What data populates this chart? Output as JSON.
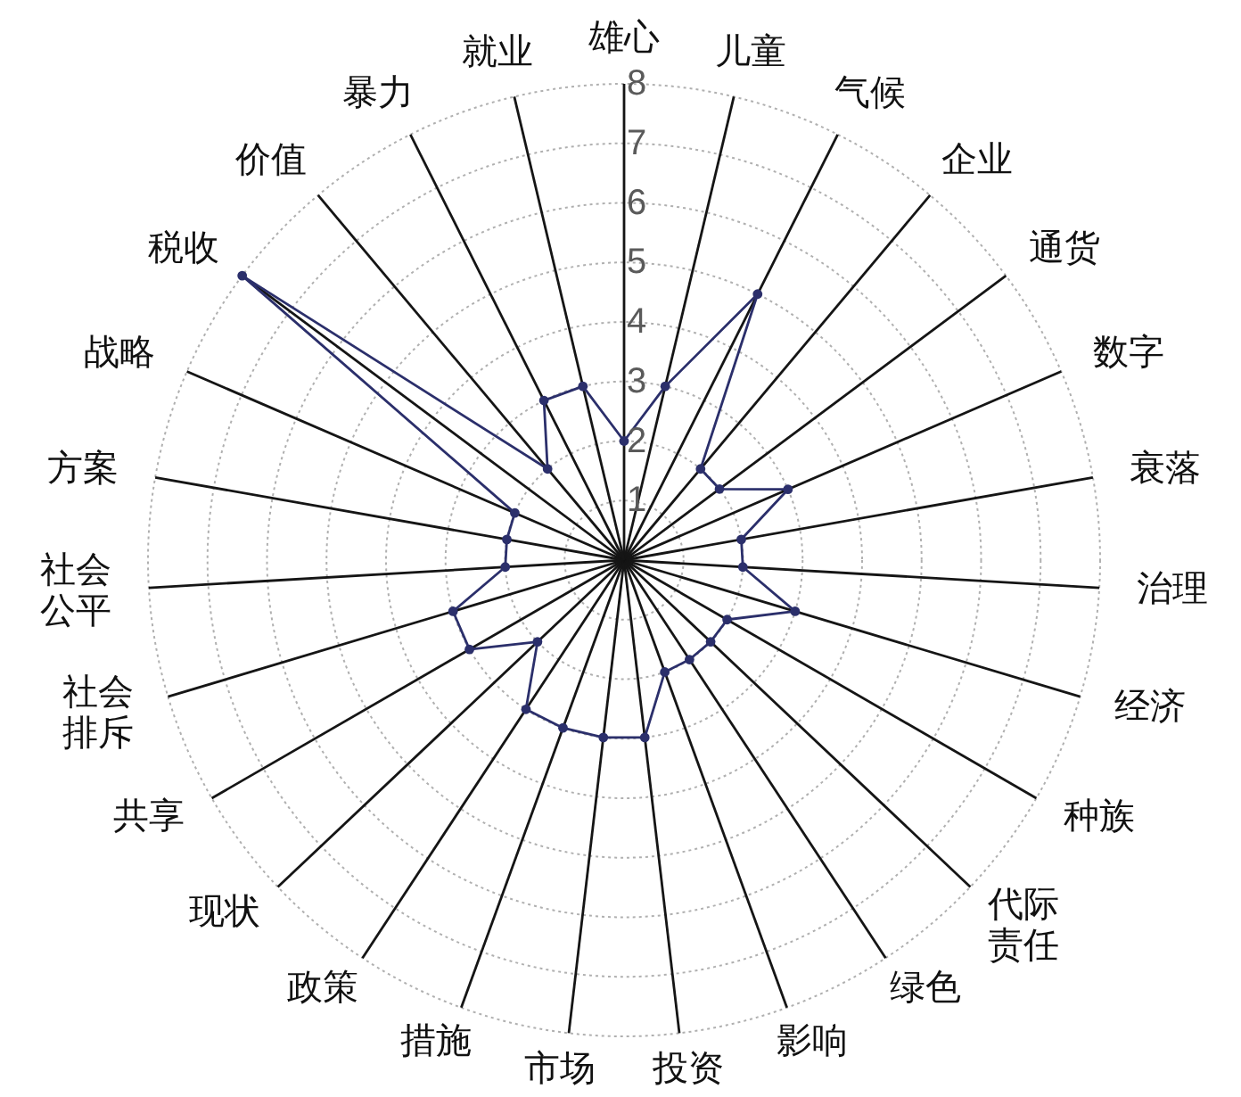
{
  "chart_data": {
    "type": "radar",
    "categories": [
      "雄心",
      "儿童",
      "气候",
      "企业",
      "通货",
      "数字",
      "衰落",
      "治理",
      "经济",
      "种族",
      "代际责任",
      "绿色",
      "影响",
      "投资",
      "市场",
      "措施",
      "政策",
      "现状",
      "共享",
      "社会排斥",
      "社会公平",
      "方案",
      "战略",
      "税收",
      "价值",
      "暴力",
      "就业"
    ],
    "series": [
      {
        "color": "#2b2f6b",
        "values": [
          2,
          3,
          5,
          2,
          2,
          3,
          2,
          2,
          3,
          2,
          2,
          2,
          2,
          3,
          3,
          3,
          3,
          2,
          3,
          3,
          2,
          2,
          2,
          8,
          2,
          3,
          3
        ]
      }
    ],
    "ylim": [
      0,
      8
    ],
    "yticks": [
      1,
      2,
      3,
      4,
      5,
      6,
      7,
      8
    ],
    "grid": true,
    "marker": "circle"
  }
}
